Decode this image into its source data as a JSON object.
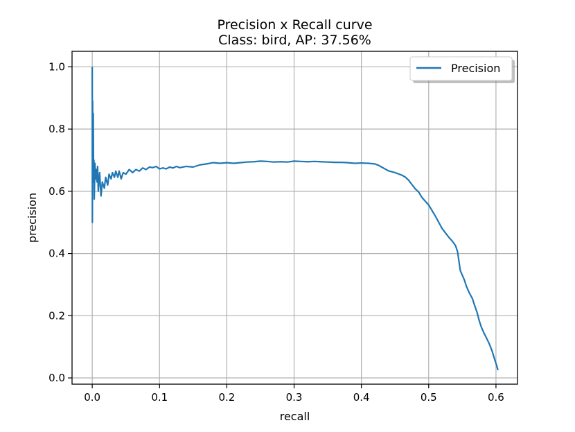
{
  "chart_data": {
    "type": "line",
    "title": "Precision x Recall curve",
    "subtitle": "Class: bird, AP: 37.56%",
    "xlabel": "recall",
    "ylabel": "precision",
    "xlim": [
      -0.03,
      0.632
    ],
    "ylim": [
      -0.02,
      1.05
    ],
    "xticks": [
      0.0,
      0.1,
      0.2,
      0.3,
      0.4,
      0.5,
      0.6
    ],
    "xtick_labels": [
      "0.0",
      "0.1",
      "0.2",
      "0.3",
      "0.4",
      "0.5",
      "0.6"
    ],
    "yticks": [
      0.0,
      0.2,
      0.4,
      0.6,
      0.8,
      1.0
    ],
    "ytick_labels": [
      "0.0",
      "0.2",
      "0.4",
      "0.6",
      "0.8",
      "1.0"
    ],
    "grid": true,
    "legend_position": "top-right",
    "series": [
      {
        "name": "Precision",
        "color": "#1f77b4",
        "points": [
          [
            0.0,
            1.0
          ],
          [
            0.0002,
            0.5
          ],
          [
            0.0006,
            0.89
          ],
          [
            0.001,
            0.63
          ],
          [
            0.0015,
            0.85
          ],
          [
            0.002,
            0.64
          ],
          [
            0.0025,
            0.7
          ],
          [
            0.003,
            0.575
          ],
          [
            0.004,
            0.69
          ],
          [
            0.005,
            0.64
          ],
          [
            0.006,
            0.67
          ],
          [
            0.007,
            0.63
          ],
          [
            0.008,
            0.68
          ],
          [
            0.009,
            0.6
          ],
          [
            0.011,
            0.66
          ],
          [
            0.013,
            0.585
          ],
          [
            0.015,
            0.63
          ],
          [
            0.018,
            0.61
          ],
          [
            0.02,
            0.645
          ],
          [
            0.023,
            0.62
          ],
          [
            0.025,
            0.655
          ],
          [
            0.028,
            0.64
          ],
          [
            0.03,
            0.66
          ],
          [
            0.033,
            0.645
          ],
          [
            0.035,
            0.665
          ],
          [
            0.038,
            0.645
          ],
          [
            0.04,
            0.665
          ],
          [
            0.043,
            0.64
          ],
          [
            0.046,
            0.66
          ],
          [
            0.05,
            0.655
          ],
          [
            0.055,
            0.67
          ],
          [
            0.06,
            0.66
          ],
          [
            0.065,
            0.67
          ],
          [
            0.07,
            0.665
          ],
          [
            0.075,
            0.675
          ],
          [
            0.08,
            0.67
          ],
          [
            0.085,
            0.678
          ],
          [
            0.09,
            0.676
          ],
          [
            0.095,
            0.68
          ],
          [
            0.1,
            0.672
          ],
          [
            0.105,
            0.675
          ],
          [
            0.11,
            0.672
          ],
          [
            0.115,
            0.678
          ],
          [
            0.12,
            0.675
          ],
          [
            0.125,
            0.68
          ],
          [
            0.13,
            0.676
          ],
          [
            0.14,
            0.68
          ],
          [
            0.15,
            0.678
          ],
          [
            0.16,
            0.685
          ],
          [
            0.17,
            0.688
          ],
          [
            0.18,
            0.692
          ],
          [
            0.19,
            0.69
          ],
          [
            0.2,
            0.692
          ],
          [
            0.21,
            0.69
          ],
          [
            0.22,
            0.692
          ],
          [
            0.23,
            0.694
          ],
          [
            0.24,
            0.695
          ],
          [
            0.25,
            0.697
          ],
          [
            0.26,
            0.696
          ],
          [
            0.27,
            0.694
          ],
          [
            0.28,
            0.695
          ],
          [
            0.29,
            0.694
          ],
          [
            0.3,
            0.697
          ],
          [
            0.31,
            0.696
          ],
          [
            0.32,
            0.695
          ],
          [
            0.33,
            0.696
          ],
          [
            0.34,
            0.695
          ],
          [
            0.35,
            0.694
          ],
          [
            0.36,
            0.693
          ],
          [
            0.37,
            0.693
          ],
          [
            0.38,
            0.692
          ],
          [
            0.39,
            0.69
          ],
          [
            0.4,
            0.691
          ],
          [
            0.41,
            0.69
          ],
          [
            0.42,
            0.688
          ],
          [
            0.425,
            0.684
          ],
          [
            0.43,
            0.678
          ],
          [
            0.435,
            0.672
          ],
          [
            0.44,
            0.666
          ],
          [
            0.45,
            0.66
          ],
          [
            0.455,
            0.656
          ],
          [
            0.46,
            0.652
          ],
          [
            0.465,
            0.646
          ],
          [
            0.47,
            0.636
          ],
          [
            0.475,
            0.622
          ],
          [
            0.48,
            0.608
          ],
          [
            0.485,
            0.598
          ],
          [
            0.49,
            0.58
          ],
          [
            0.495,
            0.568
          ],
          [
            0.5,
            0.556
          ],
          [
            0.505,
            0.538
          ],
          [
            0.51,
            0.52
          ],
          [
            0.515,
            0.5
          ],
          [
            0.52,
            0.48
          ],
          [
            0.525,
            0.466
          ],
          [
            0.53,
            0.452
          ],
          [
            0.535,
            0.44
          ],
          [
            0.54,
            0.425
          ],
          [
            0.543,
            0.405
          ],
          [
            0.545,
            0.375
          ],
          [
            0.547,
            0.345
          ],
          [
            0.55,
            0.33
          ],
          [
            0.553,
            0.315
          ],
          [
            0.556,
            0.295
          ],
          [
            0.56,
            0.275
          ],
          [
            0.565,
            0.255
          ],
          [
            0.568,
            0.235
          ],
          [
            0.572,
            0.21
          ],
          [
            0.575,
            0.185
          ],
          [
            0.578,
            0.165
          ],
          [
            0.582,
            0.145
          ],
          [
            0.586,
            0.128
          ],
          [
            0.59,
            0.11
          ],
          [
            0.594,
            0.088
          ],
          [
            0.598,
            0.06
          ],
          [
            0.601,
            0.04
          ],
          [
            0.603,
            0.025
          ]
        ]
      }
    ]
  }
}
